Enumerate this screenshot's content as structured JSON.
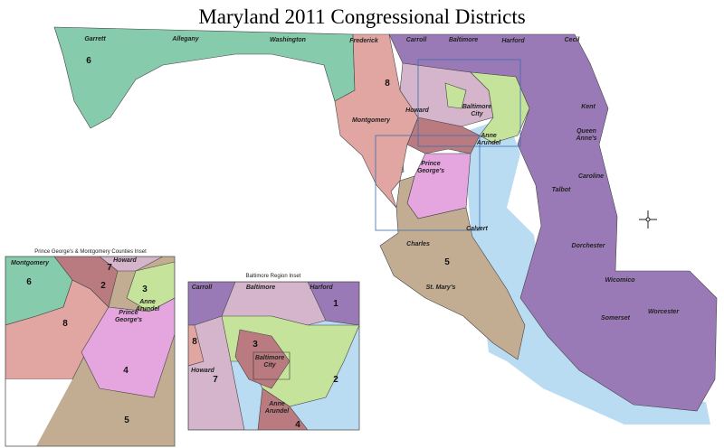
{
  "title": "Maryland 2011 Congressional Districts",
  "main_map": {
    "counties": [
      [
        "Garrett"
      ],
      [
        "Allegany"
      ],
      [
        "Washington"
      ],
      [
        "Frederick"
      ],
      [
        "Carroll"
      ],
      [
        "Baltimore"
      ],
      [
        "Harford"
      ],
      [
        "Cecil"
      ],
      [
        "Howard"
      ],
      [
        "Montgomery"
      ],
      [
        "Baltimore",
        "City"
      ],
      [
        "Anne",
        "Arundel"
      ],
      [
        "Prince",
        "George's"
      ],
      [
        "Kent"
      ],
      [
        "Queen",
        "Anne's"
      ],
      [
        "Caroline"
      ],
      [
        "Talbot"
      ],
      [
        "Calvert"
      ],
      [
        "Charles"
      ],
      [
        "St. Mary's"
      ],
      [
        "Dorchester"
      ],
      [
        "Wicomico"
      ],
      [
        "Somerset"
      ],
      [
        "Worcester"
      ]
    ],
    "districts": [
      "6",
      "8",
      "5"
    ]
  },
  "insets": [
    {
      "title": "Prince George's & Montgomery Counties Inset",
      "counties": [
        [
          "Montgomery"
        ],
        [
          "Howard"
        ],
        [
          "Anne",
          "Arundel"
        ],
        [
          "Prince",
          "George's"
        ]
      ],
      "districts": [
        "7",
        "6",
        "3",
        "2",
        "8",
        "4",
        "5"
      ]
    },
    {
      "title": "Baltimore Region Inset",
      "counties": [
        [
          "Carroll"
        ],
        [
          "Baltimore"
        ],
        [
          "Harford"
        ],
        [
          "Baltimore",
          "City"
        ],
        [
          "Howard"
        ],
        [
          "Anne",
          "Arundel"
        ]
      ],
      "districts": [
        "1",
        "8",
        "3",
        "7",
        "2",
        "4"
      ]
    }
  ]
}
